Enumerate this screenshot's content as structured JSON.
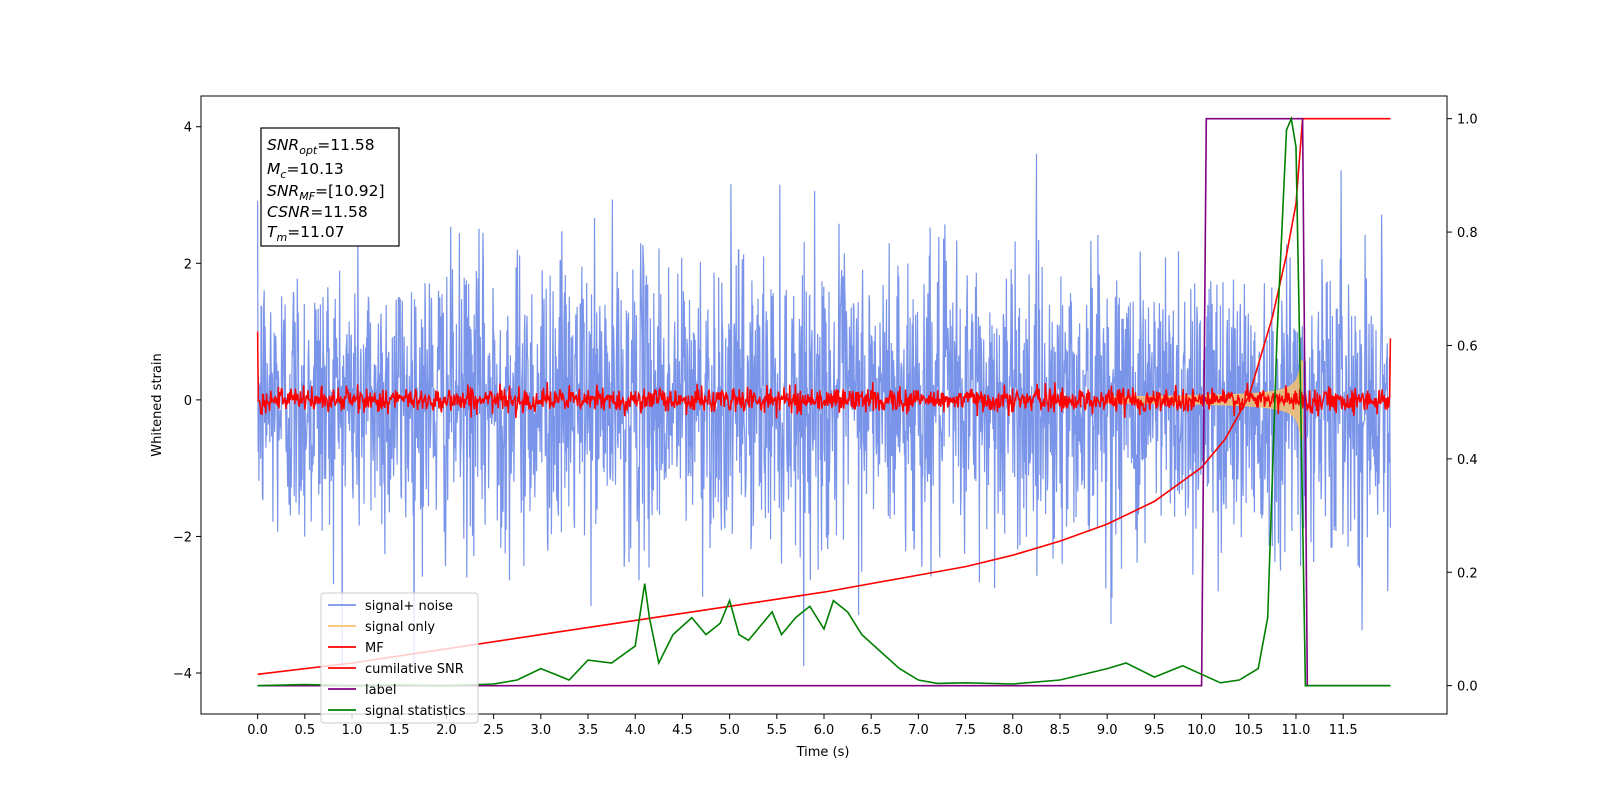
{
  "chart_data": {
    "type": "line",
    "title": "",
    "xlabel": "Time (s)",
    "ylabel": "Whitened strain",
    "xlim": [
      -0.6,
      12.6
    ],
    "ylim_left": [
      -4.6,
      4.45
    ],
    "ylim_right": [
      -0.05,
      1.04
    ],
    "x_ticks": [
      "0.0",
      "0.5",
      "1.0",
      "1.5",
      "2.0",
      "2.5",
      "3.0",
      "3.5",
      "4.0",
      "4.5",
      "5.0",
      "5.5",
      "6.0",
      "6.5",
      "7.0",
      "7.5",
      "8.0",
      "8.5",
      "9.0",
      "9.5",
      "10.0",
      "10.5",
      "11.0",
      "11.5"
    ],
    "y_ticks_left": [
      "4",
      "2",
      "0",
      "−2",
      "−4"
    ],
    "y_ticks_right": [
      "1.0",
      "0.8",
      "0.6",
      "0.4",
      "0.2",
      "0.0"
    ],
    "grid": false,
    "legend_position": "bottom-left",
    "legend": [
      "signal+ noise",
      "signal only",
      "MF",
      "cumilative SNR",
      "label",
      "signal statistics"
    ],
    "annotation": {
      "lines": [
        {
          "base": "SNR",
          "sub": "opt",
          "value": "=11.58"
        },
        {
          "base": "M",
          "sub": "c",
          "value": "=10.13"
        },
        {
          "base": "SNR",
          "sub": "MF",
          "value": "=[10.92]"
        },
        {
          "base": "CSNR",
          "sub": "",
          "value": "=11.58"
        },
        {
          "base": "T",
          "sub": "m",
          "value": "=11.07"
        }
      ]
    },
    "series": [
      {
        "name": "signal+ noise",
        "axis": "left",
        "color": "#7994e8",
        "x_range": [
          0.0,
          12.0
        ],
        "amplitude_range": [
          -3.9,
          3.7
        ],
        "note_values": "white noise spanning about ±2 to ±3.5"
      },
      {
        "name": "signal only",
        "axis": "left",
        "color": "#f5c070",
        "x_range": [
          9.0,
          11.07
        ],
        "peak_amplitude": 0.85
      },
      {
        "name": "MF",
        "axis": "left",
        "color": "#ff0000",
        "x_range": [
          0.0,
          12.0
        ],
        "peak_amplitude": 0.35,
        "endpoint_values": [
          1.0,
          0.9
        ]
      },
      {
        "name": "cumilative SNR",
        "axis": "right",
        "color": "#ff0000",
        "x": [
          0.0,
          1.0,
          2.0,
          3.0,
          4.0,
          5.0,
          6.0,
          7.0,
          7.5,
          8.0,
          8.5,
          9.0,
          9.5,
          10.0,
          10.25,
          10.5,
          10.75,
          10.9,
          11.0,
          11.07,
          12.0
        ],
        "y": [
          0.02,
          0.04,
          0.065,
          0.09,
          0.115,
          0.14,
          0.165,
          0.195,
          0.21,
          0.23,
          0.255,
          0.285,
          0.325,
          0.385,
          0.435,
          0.51,
          0.65,
          0.76,
          0.85,
          1.0,
          1.0
        ]
      },
      {
        "name": "label",
        "axis": "right",
        "color": "#800080",
        "x": [
          0.0,
          10.0,
          10.05,
          11.07,
          11.12,
          12.0
        ],
        "y": [
          0.0,
          0.0,
          1.0,
          1.0,
          0.0,
          0.0
        ]
      },
      {
        "name": "signal statistics",
        "axis": "right",
        "color": "#008000",
        "x": [
          0.0,
          0.5,
          1.0,
          1.5,
          2.0,
          2.5,
          2.75,
          3.0,
          3.15,
          3.3,
          3.5,
          3.75,
          4.0,
          4.1,
          4.15,
          4.25,
          4.4,
          4.6,
          4.75,
          4.9,
          5.0,
          5.1,
          5.2,
          5.3,
          5.45,
          5.55,
          5.7,
          5.85,
          6.0,
          6.1,
          6.25,
          6.4,
          6.6,
          6.8,
          7.0,
          7.2,
          7.5,
          8.0,
          8.5,
          9.0,
          9.2,
          9.5,
          9.8,
          10.0,
          10.2,
          10.4,
          10.6,
          10.7,
          10.8,
          10.9,
          10.95,
          11.0,
          11.05,
          11.1,
          11.5,
          12.0
        ],
        "y": [
          0.0,
          0.002,
          0.0,
          0.001,
          0.0,
          0.003,
          0.01,
          0.03,
          0.02,
          0.01,
          0.045,
          0.04,
          0.07,
          0.18,
          0.12,
          0.04,
          0.09,
          0.12,
          0.09,
          0.11,
          0.15,
          0.09,
          0.08,
          0.1,
          0.13,
          0.09,
          0.12,
          0.14,
          0.1,
          0.15,
          0.13,
          0.09,
          0.06,
          0.03,
          0.01,
          0.004,
          0.005,
          0.003,
          0.01,
          0.03,
          0.04,
          0.015,
          0.035,
          0.02,
          0.005,
          0.01,
          0.03,
          0.12,
          0.62,
          0.98,
          1.0,
          0.95,
          0.5,
          0.0,
          0.0,
          0.0
        ]
      }
    ]
  }
}
